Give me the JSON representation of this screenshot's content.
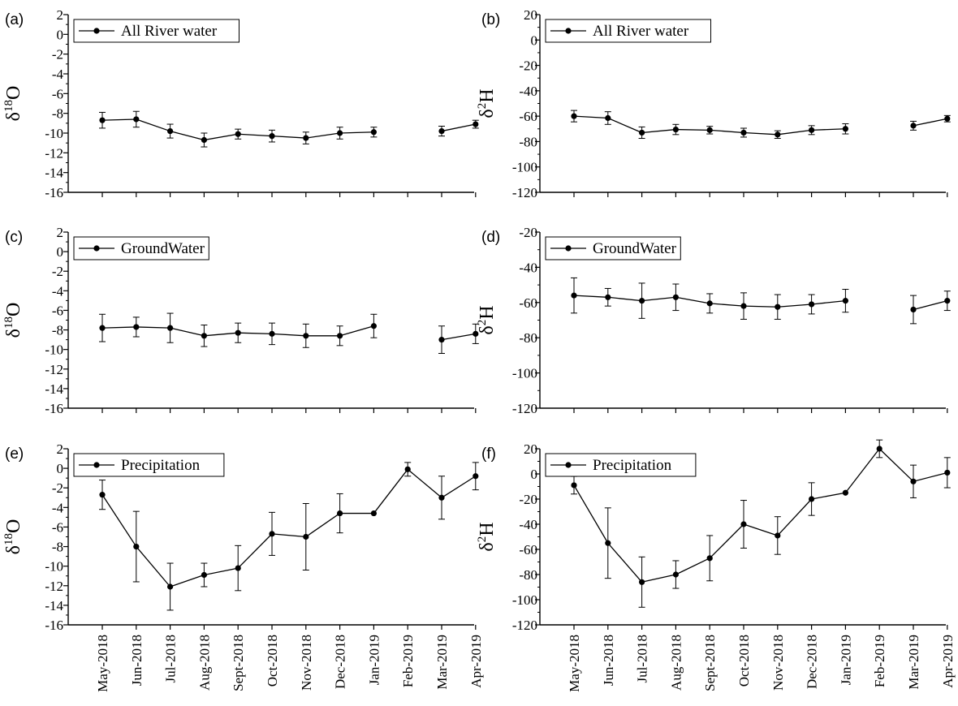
{
  "chart_data": [
    {
      "panel": "(a)",
      "type": "line",
      "x": [
        "May-2018",
        "Jun-2018",
        "Jul-2018",
        "Aug-2018",
        "Sept-2018",
        "Oct-2018",
        "Nov-2018",
        "Dec-2018",
        "Jan-2019",
        "Feb-2019",
        "Mar-2019",
        "Apr-2019"
      ],
      "series": [
        {
          "name": "All River water",
          "values": [
            -8.7,
            -8.6,
            -9.8,
            -10.7,
            -10.1,
            -10.3,
            -10.5,
            -10.0,
            -9.9,
            null,
            -9.8,
            -9.1
          ],
          "errors": [
            0.8,
            0.8,
            0.7,
            0.7,
            0.5,
            0.6,
            0.6,
            0.6,
            0.5,
            null,
            0.5,
            0.4
          ]
        }
      ],
      "ylabel": {
        "base": "δ",
        "sup": "18",
        "main": "O"
      },
      "ylim": [
        -16,
        2
      ],
      "yticks": [
        2,
        0,
        -2,
        -4,
        -6,
        -8,
        -10,
        -12,
        -14,
        -16
      ],
      "legend": "top-left"
    },
    {
      "panel": "(b)",
      "type": "line",
      "x": [
        "May-2018",
        "Jun-2018",
        "Jul-2018",
        "Aug-2018",
        "Sept-2018",
        "Oct-2018",
        "Nov-2018",
        "Dec-2018",
        "Jan-2019",
        "Feb-2019",
        "Mar-2019",
        "Apr-2019"
      ],
      "series": [
        {
          "name": "All River water",
          "values": [
            -60,
            -61.5,
            -73,
            -70.5,
            -71,
            -73,
            -74.5,
            -71,
            -70,
            null,
            -67.5,
            -62
          ],
          "errors": [
            4.5,
            5,
            4.5,
            4,
            3,
            3.5,
            3,
            3.5,
            4,
            null,
            3.5,
            2.5
          ]
        }
      ],
      "ylabel": {
        "base": "δ",
        "sup": "2",
        "main": "H"
      },
      "ylim": [
        -120,
        20
      ],
      "yticks": [
        20,
        0,
        -20,
        -40,
        -60,
        -80,
        -100,
        -120
      ],
      "legend": "top-left"
    },
    {
      "panel": "(c)",
      "type": "line",
      "x": [
        "May-2018",
        "Jun-2018",
        "Jul-2018",
        "Aug-2018",
        "Sept-2018",
        "Oct-2018",
        "Nov-2018",
        "Dec-2018",
        "Jan-2019",
        "Feb-2019",
        "Mar-2019",
        "Apr-2019"
      ],
      "series": [
        {
          "name": "GroundWater",
          "values": [
            -7.8,
            -7.7,
            -7.8,
            -8.6,
            -8.3,
            -8.4,
            -8.6,
            -8.6,
            -7.6,
            null,
            -9.0,
            -8.4
          ],
          "errors": [
            1.4,
            1.0,
            1.5,
            1.1,
            1.0,
            1.1,
            1.2,
            1.0,
            1.2,
            null,
            1.4,
            1.0
          ]
        }
      ],
      "ylabel": {
        "base": "δ",
        "sup": "18",
        "main": "O"
      },
      "ylim": [
        -16,
        2
      ],
      "yticks": [
        2,
        0,
        -2,
        -4,
        -6,
        -8,
        -10,
        -12,
        -14,
        -16
      ],
      "legend": "top-left"
    },
    {
      "panel": "(d)",
      "type": "line",
      "x": [
        "May-2018",
        "Jun-2018",
        "Jul-2018",
        "Aug-2018",
        "Sept-2018",
        "Oct-2018",
        "Nov-2018",
        "Dec-2018",
        "Jan-2019",
        "Feb-2019",
        "Mar-2019",
        "Apr-2019"
      ],
      "series": [
        {
          "name": "GroundWater",
          "values": [
            -56,
            -57,
            -59,
            -57,
            -60.5,
            -62,
            -62.5,
            -61,
            -59,
            null,
            -64,
            -59
          ],
          "errors": [
            10,
            5,
            10,
            7.5,
            5.5,
            7.5,
            7,
            5.5,
            6.5,
            null,
            8,
            5.5
          ]
        }
      ],
      "ylabel": {
        "base": "δ",
        "sup": "2",
        "main": "H"
      },
      "ylim": [
        -120,
        -20
      ],
      "yticks": [
        -20,
        -40,
        -60,
        -80,
        -100,
        -120
      ],
      "legend": "top-left"
    },
    {
      "panel": "(e)",
      "type": "line",
      "x": [
        "May-2018",
        "Jun-2018",
        "Jul-2018",
        "Aug-2018",
        "Sept-2018",
        "Oct-2018",
        "Nov-2018",
        "Dec-2018",
        "Jan-2019",
        "Feb-2019",
        "Mar-2019",
        "Apr-2019"
      ],
      "series": [
        {
          "name": "Precipitation",
          "values": [
            -2.7,
            -8.0,
            -12.1,
            -10.9,
            -10.2,
            -6.7,
            -7.0,
            -4.6,
            -4.6,
            -0.1,
            -3.0,
            -0.8
          ],
          "errors": [
            1.5,
            3.6,
            2.4,
            1.2,
            2.3,
            2.2,
            3.4,
            2.0,
            0,
            0.7,
            2.2,
            1.4
          ]
        }
      ],
      "ylabel": {
        "base": "δ",
        "sup": "18",
        "main": "O"
      },
      "ylim": [
        -16,
        2
      ],
      "yticks": [
        2,
        0,
        -2,
        -4,
        -6,
        -8,
        -10,
        -12,
        -14,
        -16
      ],
      "legend": "top-left"
    },
    {
      "panel": "(f)",
      "type": "line",
      "x": [
        "May-2018",
        "Jun-2018",
        "Jul-2018",
        "Aug-2018",
        "Sept-2018",
        "Oct-2018",
        "Nov-2018",
        "Dec-2018",
        "Jan-2019",
        "Feb-2019",
        "Mar-2019",
        "Apr-2019"
      ],
      "series": [
        {
          "name": "Precipitation",
          "values": [
            -9,
            -55,
            -86,
            -80,
            -67,
            -40,
            -49,
            -20,
            -15,
            20,
            -6,
            1
          ],
          "errors": [
            7,
            28,
            20,
            11,
            18,
            19,
            15,
            13,
            0,
            7,
            13,
            12
          ]
        }
      ],
      "ylabel": {
        "base": "δ",
        "sup": "2",
        "main": "H"
      },
      "ylim": [
        -120,
        20
      ],
      "yticks": [
        20,
        0,
        -20,
        -40,
        -60,
        -80,
        -100,
        -120
      ],
      "legend": "top-left"
    }
  ]
}
